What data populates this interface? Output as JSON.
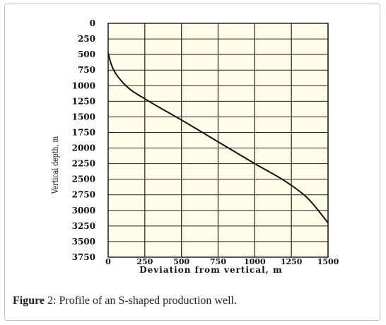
{
  "chart_data": {
    "type": "line",
    "xlabel": "Deviation from vertical, m",
    "ylabel": "Vertical depth, m",
    "xlim": [
      0,
      1500
    ],
    "ylim": [
      3750,
      0
    ],
    "y_inverted": true,
    "x_ticks": [
      "0",
      "250",
      "500",
      "750",
      "1000",
      "1250",
      "1500"
    ],
    "y_ticks": [
      "0",
      "250",
      "500",
      "750",
      "1000",
      "1250",
      "1500",
      "1750",
      "2000",
      "2250",
      "2500",
      "2750",
      "3000",
      "3250",
      "3500",
      "3750"
    ],
    "grid": true,
    "x": [
      0,
      20,
      50,
      100,
      150,
      200,
      250,
      350,
      500,
      750,
      1000,
      1200,
      1350,
      1450,
      1500
    ],
    "y": [
      475,
      650,
      800,
      950,
      1060,
      1140,
      1210,
      1350,
      1550,
      1900,
      2250,
      2520,
      2780,
      3050,
      3200
    ]
  },
  "caption": {
    "label": "Figure",
    "number": "2",
    "text": ": Profile of an S-shaped production well."
  },
  "colors": {
    "plot_background": "#FFFCE8",
    "grid": "#222222",
    "curve": "#111111"
  }
}
